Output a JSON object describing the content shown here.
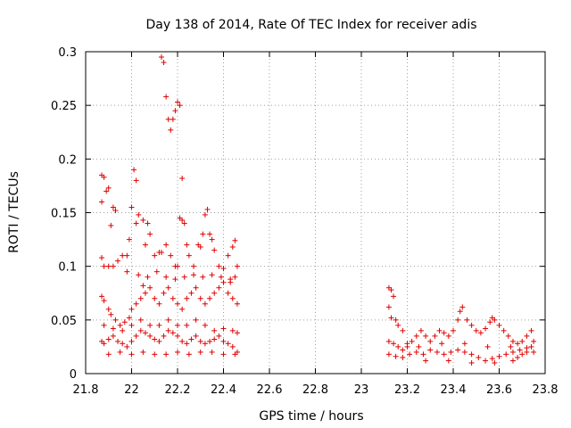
{
  "chart_data": {
    "type": "scatter",
    "title": "Day 138 of 2014, Rate Of TEC Index for receiver adis",
    "xlabel": "GPS time / hours",
    "ylabel": "ROTI / TECUs",
    "xlim": [
      21.8,
      23.8
    ],
    "ylim": [
      0,
      0.3
    ],
    "xticks": [
      21.8,
      22,
      22.2,
      22.4,
      22.6,
      22.8,
      23,
      23.2,
      23.4,
      23.6,
      23.8
    ],
    "xtick_labels": [
      "21.8",
      "22",
      "22.2",
      "22.4",
      "22.6",
      "22.8",
      "23",
      "23.2",
      "23.4",
      "23.6",
      "23.8"
    ],
    "yticks": [
      0,
      0.05,
      0.1,
      0.15,
      0.2,
      0.25,
      0.3
    ],
    "ytick_labels": [
      "0",
      "0.05",
      "0.1",
      "0.15",
      "0.2",
      "0.25",
      "0.3"
    ],
    "grid": true,
    "marker": "plus",
    "color": "#e00000",
    "series": [
      {
        "name": "ROTI",
        "points": [
          [
            21.87,
            0.185
          ],
          [
            21.88,
            0.183
          ],
          [
            21.87,
            0.16
          ],
          [
            21.89,
            0.17
          ],
          [
            21.9,
            0.173
          ],
          [
            21.91,
            0.138
          ],
          [
            21.92,
            0.155
          ],
          [
            21.93,
            0.152
          ],
          [
            21.87,
            0.108
          ],
          [
            21.88,
            0.1
          ],
          [
            21.9,
            0.1
          ],
          [
            21.92,
            0.1
          ],
          [
            21.94,
            0.105
          ],
          [
            21.96,
            0.11
          ],
          [
            21.98,
            0.11
          ],
          [
            21.99,
            0.125
          ],
          [
            22.01,
            0.19
          ],
          [
            22.02,
            0.18
          ],
          [
            22.0,
            0.155
          ],
          [
            22.02,
            0.14
          ],
          [
            22.03,
            0.148
          ],
          [
            22.05,
            0.143
          ],
          [
            22.07,
            0.14
          ],
          [
            22.06,
            0.12
          ],
          [
            22.08,
            0.13
          ],
          [
            22.1,
            0.11
          ],
          [
            22.12,
            0.113
          ],
          [
            22.13,
            0.113
          ],
          [
            22.15,
            0.12
          ],
          [
            22.17,
            0.11
          ],
          [
            22.19,
            0.1
          ],
          [
            22.2,
            0.1
          ],
          [
            22.13,
            0.295
          ],
          [
            22.14,
            0.29
          ],
          [
            22.15,
            0.258
          ],
          [
            22.16,
            0.237
          ],
          [
            22.17,
            0.227
          ],
          [
            22.18,
            0.237
          ],
          [
            22.19,
            0.245
          ],
          [
            22.2,
            0.253
          ],
          [
            22.21,
            0.25
          ],
          [
            22.22,
            0.182
          ],
          [
            22.21,
            0.145
          ],
          [
            22.22,
            0.143
          ],
          [
            22.23,
            0.14
          ],
          [
            22.24,
            0.12
          ],
          [
            22.25,
            0.11
          ],
          [
            22.27,
            0.1
          ],
          [
            22.29,
            0.12
          ],
          [
            22.3,
            0.118
          ],
          [
            22.31,
            0.13
          ],
          [
            22.32,
            0.148
          ],
          [
            22.33,
            0.153
          ],
          [
            22.34,
            0.13
          ],
          [
            22.35,
            0.125
          ],
          [
            22.36,
            0.115
          ],
          [
            22.38,
            0.1
          ],
          [
            22.4,
            0.098
          ],
          [
            22.42,
            0.11
          ],
          [
            22.44,
            0.118
          ],
          [
            22.45,
            0.124
          ],
          [
            22.46,
            0.1
          ],
          [
            22.45,
            0.09
          ],
          [
            22.43,
            0.085
          ],
          [
            21.87,
            0.072
          ],
          [
            21.88,
            0.068
          ],
          [
            21.9,
            0.06
          ],
          [
            21.91,
            0.055
          ],
          [
            21.93,
            0.05
          ],
          [
            21.95,
            0.045
          ],
          [
            21.97,
            0.048
          ],
          [
            21.99,
            0.052
          ],
          [
            22.0,
            0.06
          ],
          [
            22.02,
            0.065
          ],
          [
            22.04,
            0.07
          ],
          [
            22.06,
            0.075
          ],
          [
            22.08,
            0.08
          ],
          [
            22.1,
            0.07
          ],
          [
            22.12,
            0.065
          ],
          [
            22.14,
            0.075
          ],
          [
            22.16,
            0.08
          ],
          [
            22.18,
            0.07
          ],
          [
            22.2,
            0.065
          ],
          [
            22.22,
            0.06
          ],
          [
            22.24,
            0.07
          ],
          [
            22.26,
            0.075
          ],
          [
            22.28,
            0.08
          ],
          [
            22.3,
            0.07
          ],
          [
            22.32,
            0.065
          ],
          [
            22.34,
            0.07
          ],
          [
            22.36,
            0.075
          ],
          [
            22.38,
            0.08
          ],
          [
            22.4,
            0.085
          ],
          [
            22.42,
            0.075
          ],
          [
            22.44,
            0.07
          ],
          [
            22.46,
            0.065
          ],
          [
            21.87,
            0.03
          ],
          [
            21.88,
            0.028
          ],
          [
            21.9,
            0.032
          ],
          [
            21.92,
            0.035
          ],
          [
            21.94,
            0.03
          ],
          [
            21.96,
            0.028
          ],
          [
            21.98,
            0.025
          ],
          [
            22.0,
            0.03
          ],
          [
            22.02,
            0.035
          ],
          [
            22.04,
            0.04
          ],
          [
            22.06,
            0.038
          ],
          [
            22.08,
            0.035
          ],
          [
            22.1,
            0.032
          ],
          [
            22.12,
            0.03
          ],
          [
            22.14,
            0.035
          ],
          [
            22.16,
            0.04
          ],
          [
            22.18,
            0.038
          ],
          [
            22.2,
            0.035
          ],
          [
            22.22,
            0.03
          ],
          [
            22.24,
            0.028
          ],
          [
            22.26,
            0.032
          ],
          [
            22.28,
            0.035
          ],
          [
            22.3,
            0.03
          ],
          [
            22.32,
            0.028
          ],
          [
            22.34,
            0.03
          ],
          [
            22.36,
            0.032
          ],
          [
            22.38,
            0.035
          ],
          [
            22.4,
            0.03
          ],
          [
            22.42,
            0.028
          ],
          [
            22.44,
            0.025
          ],
          [
            22.46,
            0.02
          ],
          [
            22.45,
            0.018
          ],
          [
            21.88,
            0.045
          ],
          [
            21.92,
            0.042
          ],
          [
            21.96,
            0.04
          ],
          [
            22.0,
            0.045
          ],
          [
            22.04,
            0.05
          ],
          [
            22.08,
            0.045
          ],
          [
            22.12,
            0.045
          ],
          [
            22.16,
            0.05
          ],
          [
            22.2,
            0.045
          ],
          [
            22.24,
            0.045
          ],
          [
            22.28,
            0.05
          ],
          [
            22.32,
            0.045
          ],
          [
            22.36,
            0.04
          ],
          [
            22.4,
            0.042
          ],
          [
            22.44,
            0.04
          ],
          [
            22.46,
            0.038
          ],
          [
            21.9,
            0.018
          ],
          [
            21.95,
            0.02
          ],
          [
            22.0,
            0.018
          ],
          [
            22.05,
            0.02
          ],
          [
            22.1,
            0.018
          ],
          [
            22.15,
            0.018
          ],
          [
            22.2,
            0.02
          ],
          [
            22.25,
            0.018
          ],
          [
            22.3,
            0.02
          ],
          [
            22.35,
            0.02
          ],
          [
            22.4,
            0.018
          ],
          [
            22.03,
            0.092
          ],
          [
            22.07,
            0.09
          ],
          [
            22.11,
            0.095
          ],
          [
            22.15,
            0.09
          ],
          [
            22.19,
            0.088
          ],
          [
            22.23,
            0.09
          ],
          [
            22.27,
            0.092
          ],
          [
            22.31,
            0.09
          ],
          [
            22.35,
            0.092
          ],
          [
            22.39,
            0.09
          ],
          [
            22.43,
            0.088
          ],
          [
            21.98,
            0.095
          ],
          [
            22.05,
            0.082
          ],
          [
            23.12,
            0.08
          ],
          [
            23.13,
            0.078
          ],
          [
            23.14,
            0.072
          ],
          [
            23.12,
            0.062
          ],
          [
            23.13,
            0.052
          ],
          [
            23.15,
            0.05
          ],
          [
            23.16,
            0.045
          ],
          [
            23.18,
            0.04
          ],
          [
            23.12,
            0.03
          ],
          [
            23.14,
            0.028
          ],
          [
            23.16,
            0.025
          ],
          [
            23.18,
            0.022
          ],
          [
            23.2,
            0.025
          ],
          [
            23.22,
            0.03
          ],
          [
            23.24,
            0.035
          ],
          [
            23.26,
            0.04
          ],
          [
            23.28,
            0.035
          ],
          [
            23.3,
            0.03
          ],
          [
            23.32,
            0.035
          ],
          [
            23.34,
            0.04
          ],
          [
            23.36,
            0.038
          ],
          [
            23.38,
            0.035
          ],
          [
            23.4,
            0.04
          ],
          [
            23.42,
            0.05
          ],
          [
            23.43,
            0.058
          ],
          [
            23.44,
            0.062
          ],
          [
            23.46,
            0.05
          ],
          [
            23.48,
            0.045
          ],
          [
            23.5,
            0.04
          ],
          [
            23.52,
            0.038
          ],
          [
            23.54,
            0.042
          ],
          [
            23.56,
            0.048
          ],
          [
            23.57,
            0.052
          ],
          [
            23.58,
            0.05
          ],
          [
            23.6,
            0.045
          ],
          [
            23.62,
            0.04
          ],
          [
            23.64,
            0.035
          ],
          [
            23.66,
            0.03
          ],
          [
            23.68,
            0.028
          ],
          [
            23.7,
            0.03
          ],
          [
            23.72,
            0.035
          ],
          [
            23.74,
            0.04
          ],
          [
            23.75,
            0.03
          ],
          [
            23.74,
            0.025
          ],
          [
            23.72,
            0.02
          ],
          [
            23.7,
            0.018
          ],
          [
            23.68,
            0.015
          ],
          [
            23.66,
            0.012
          ],
          [
            23.12,
            0.018
          ],
          [
            23.15,
            0.016
          ],
          [
            23.18,
            0.015
          ],
          [
            23.21,
            0.018
          ],
          [
            23.24,
            0.02
          ],
          [
            23.27,
            0.018
          ],
          [
            23.3,
            0.022
          ],
          [
            23.33,
            0.02
          ],
          [
            23.36,
            0.018
          ],
          [
            23.39,
            0.02
          ],
          [
            23.42,
            0.022
          ],
          [
            23.45,
            0.02
          ],
          [
            23.48,
            0.018
          ],
          [
            23.51,
            0.015
          ],
          [
            23.54,
            0.012
          ],
          [
            23.57,
            0.014
          ],
          [
            23.6,
            0.016
          ],
          [
            23.63,
            0.018
          ],
          [
            23.66,
            0.02
          ],
          [
            23.69,
            0.022
          ],
          [
            23.72,
            0.024
          ],
          [
            23.75,
            0.02
          ],
          [
            23.2,
            0.028
          ],
          [
            23.25,
            0.025
          ],
          [
            23.35,
            0.028
          ],
          [
            23.45,
            0.028
          ],
          [
            23.55,
            0.025
          ],
          [
            23.65,
            0.025
          ],
          [
            23.28,
            0.012
          ],
          [
            23.38,
            0.012
          ],
          [
            23.48,
            0.01
          ],
          [
            23.58,
            0.01
          ]
        ]
      }
    ]
  }
}
